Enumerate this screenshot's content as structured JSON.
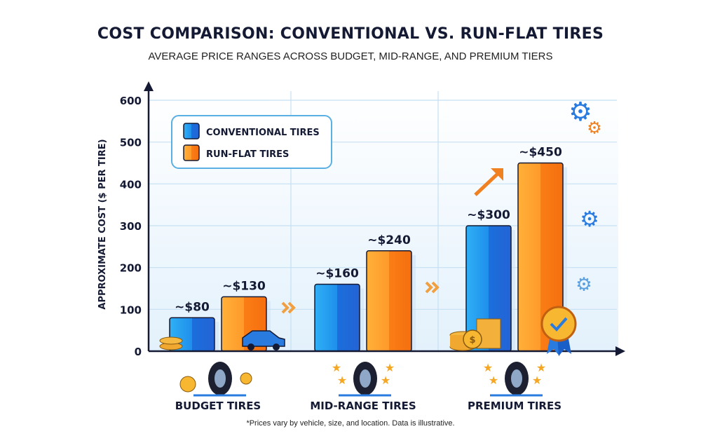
{
  "chart_data": {
    "type": "bar",
    "title": "COST COMPARISON: CONVENTIONAL VS. RUN-FLAT TIRES",
    "subtitle": "AVERAGE PRICE RANGES ACROSS BUDGET, MID-RANGE, AND PREMIUM TIERS",
    "ylabel": "APPROXIMATE COST ($ PER TIRE)",
    "xlabel": "",
    "ylim": [
      0,
      600
    ],
    "yticks": [
      0,
      100,
      200,
      300,
      400,
      500,
      600
    ],
    "grid": true,
    "legend_position": "top-left",
    "categories": [
      "BUDGET TIRES",
      "MID-RANGE TIRES",
      "PREMIUM TIRES"
    ],
    "series": [
      {
        "name": "CONVENTIONAL TIRES",
        "values": [
          80,
          160,
          300
        ],
        "labels": [
          "~$80",
          "~$160",
          "~$300"
        ],
        "color": "#1f7de0"
      },
      {
        "name": "RUN-FLAT TIRES",
        "values": [
          130,
          240,
          450
        ],
        "labels": [
          "~$130",
          "~$240",
          "~$450"
        ],
        "color": "#f7841f"
      }
    ],
    "footnote": "*Prices vary by vehicle, size, and location. Data is illustrative."
  },
  "icons": [
    "coins-icon",
    "car-icon",
    "tire-icon",
    "star-icon",
    "gear-icon",
    "arrow-up-icon",
    "award-badge-icon",
    "chevron-double-right-icon"
  ]
}
